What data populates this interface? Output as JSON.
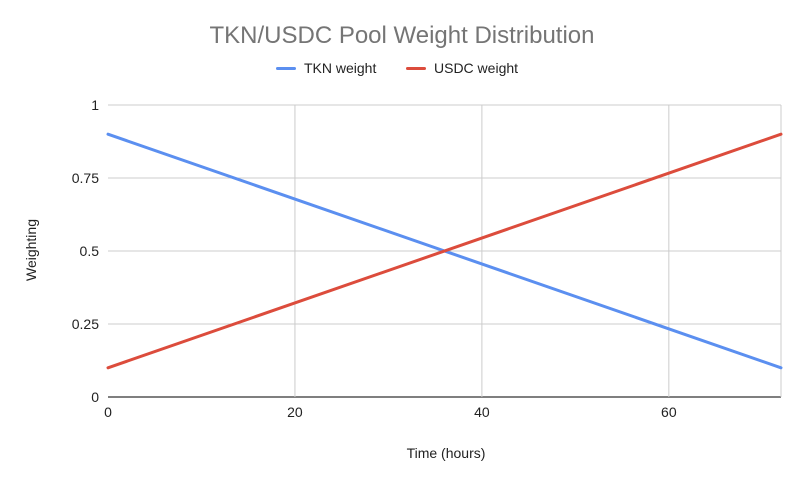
{
  "chart_data": {
    "type": "line",
    "title": "TKN/USDC Pool Weight Distribution",
    "xlabel": "Time (hours)",
    "ylabel": "Weighting",
    "xlim": [
      0,
      72
    ],
    "ylim": [
      0,
      1
    ],
    "x_ticks": [
      0,
      20,
      40,
      60
    ],
    "x_tick_labels": [
      "0",
      "20",
      "40",
      "60"
    ],
    "y_ticks": [
      0,
      0.25,
      0.5,
      0.75,
      1
    ],
    "y_tick_labels": [
      "0",
      "0.25",
      "0.5",
      "0.75",
      "1"
    ],
    "grid": true,
    "legend_position": "top",
    "series": [
      {
        "name": "TKN weight",
        "color": "#5b8ff0",
        "x": [
          0,
          72
        ],
        "y": [
          0.9,
          0.1
        ]
      },
      {
        "name": "USDC weight",
        "color": "#dc4c3c",
        "x": [
          0,
          72
        ],
        "y": [
          0.1,
          0.9
        ]
      }
    ]
  }
}
